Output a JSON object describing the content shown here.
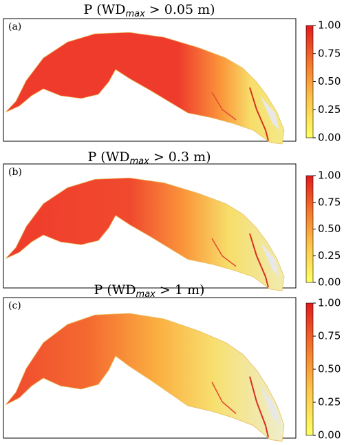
{
  "panels": [
    {
      "title": {
        "prefix": "P (WD",
        "subscript": "max",
        "suffix": " > 0.05 m)"
      },
      "label": "(a)"
    },
    {
      "title": {
        "prefix": "P (WD",
        "subscript": "max",
        "suffix": " > 0.3 m)"
      },
      "label": "(b)"
    },
    {
      "title": {
        "prefix": "P (WD",
        "subscript": "max",
        "suffix": " > 1 m)"
      },
      "label": "(c)"
    }
  ],
  "colorbar": {
    "clim": [
      0,
      1
    ],
    "ticks": [
      {
        "value": 0,
        "label": "0.00"
      },
      {
        "value": 0.25,
        "label": "0.25"
      },
      {
        "value": 0.5,
        "label": "0.50"
      },
      {
        "value": 0.75,
        "label": "0.75"
      },
      {
        "value": 1,
        "label": "1.00"
      }
    ]
  }
}
